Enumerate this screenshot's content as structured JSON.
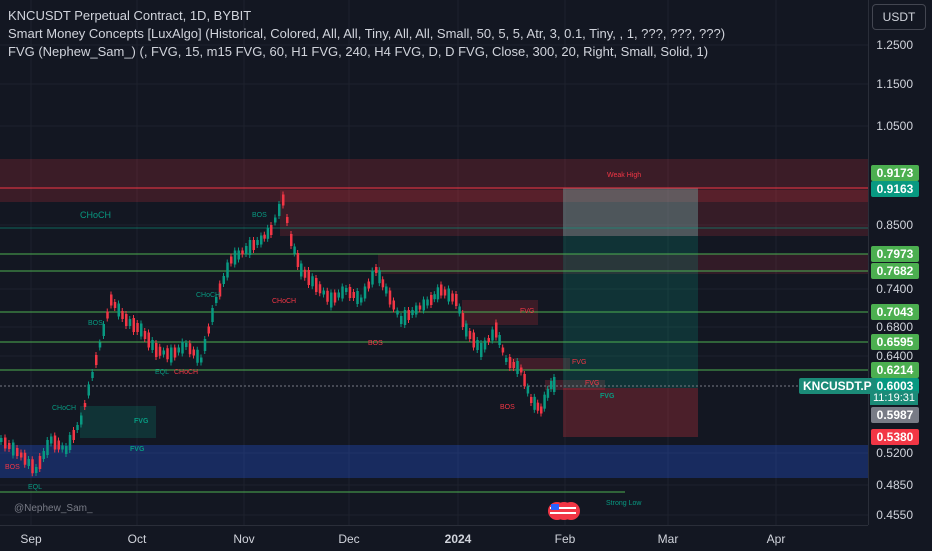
{
  "header": {
    "symbol_line": "KNCUSDT Perpetual Contract, 1D, BYBIT",
    "indicator_1": "Smart Money Concepts [LuxAlgo] (Historical, Colored, All, All, Tiny, All, All, Small, 50, 5, 5, Atr, 3, 0.1, Tiny, , 1, ???, ???, ???)",
    "indicator_2": "FVG (Nephew_Sam_) (, FVG, 15, m15 FVG, 60, H1 FVG, 240, H4 FVG, D, D FVG, Close, 300, 20, Right, Small, Solid, 1)"
  },
  "currency_button": "USDT",
  "price_scale": {
    "ticks": [
      "1.2500",
      "1.1500",
      "1.0500",
      "0.8500",
      "0.7400",
      "0.6800",
      "0.6400",
      "0.5200",
      "0.4850",
      "0.4550"
    ],
    "tags": [
      {
        "label": "0.9173",
        "color": "#4caf50"
      },
      {
        "label": "0.9163",
        "color": "#089981"
      },
      {
        "label": "0.7973",
        "color": "#4caf50"
      },
      {
        "label": "0.7682",
        "color": "#4caf50"
      },
      {
        "label": "0.7043",
        "color": "#4caf50"
      },
      {
        "label": "0.6595",
        "color": "#4caf50"
      },
      {
        "label": "0.6214",
        "color": "#4caf50"
      },
      {
        "label": "0.6003",
        "color": "#089981"
      },
      {
        "label": "0.5987",
        "color": "#787b86"
      },
      {
        "label": "0.5380",
        "color": "#f23645"
      }
    ],
    "countdown": "11:19:31"
  },
  "symbol_badge": "KNCUSDT.P",
  "time_axis": [
    "Sep",
    "Oct",
    "Nov",
    "Dec",
    "2024",
    "Feb",
    "Mar",
    "Apr"
  ],
  "annotations": {
    "choch_left": "CHoCH",
    "weak_high": "Weak High",
    "strong_low": "Strong Low",
    "fvg": "FVG",
    "bos": "BOS",
    "eql": "EQL",
    "choch": "CHoCH"
  },
  "watermark": "@Nephew_Sam_",
  "colors": {
    "bull": "#089981",
    "bear": "#f23645",
    "level_line": "#4caf50",
    "background": "#131722"
  }
}
